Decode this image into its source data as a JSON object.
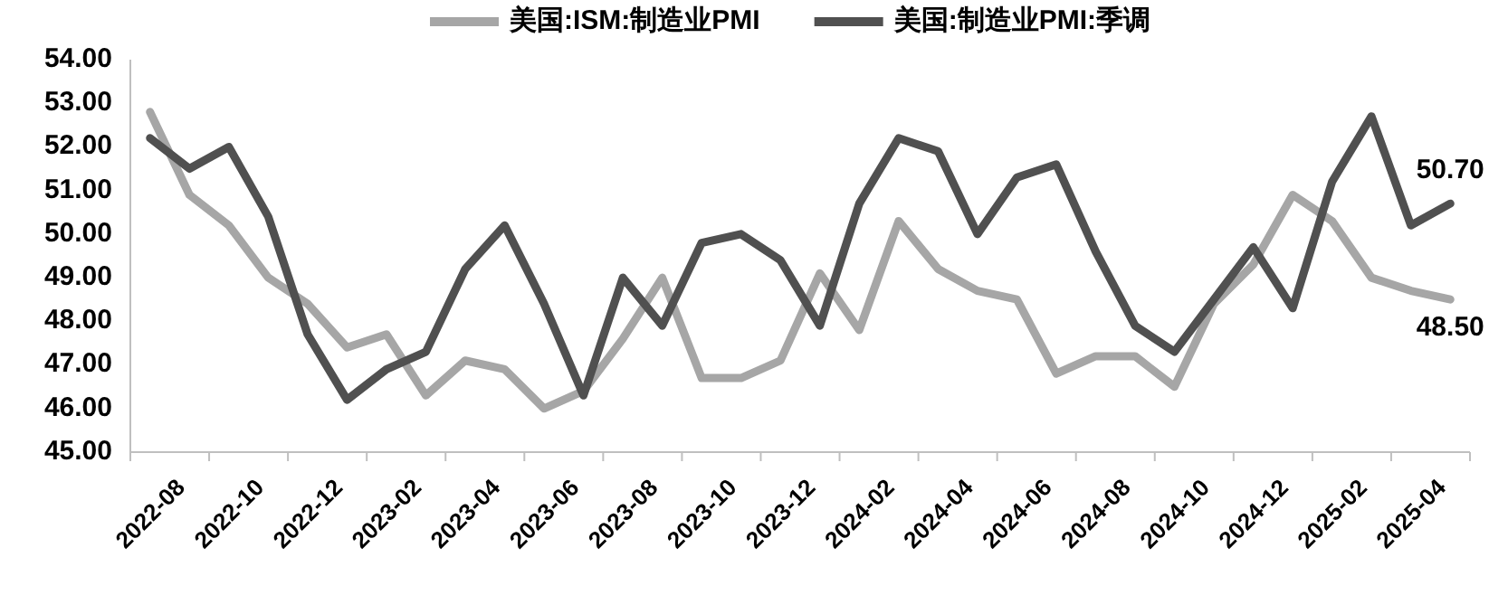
{
  "chart_data": {
    "type": "line",
    "categories": [
      "2022-08",
      null,
      "2022-10",
      null,
      "2022-12",
      null,
      "2023-02",
      null,
      "2023-04",
      null,
      "2023-06",
      null,
      "2023-08",
      null,
      "2023-10",
      null,
      "2023-12",
      null,
      "2024-02",
      null,
      "2024-04",
      null,
      "2024-06",
      null,
      "2024-08",
      null,
      "2024-10",
      null,
      "2024-12",
      null,
      "2025-02",
      null,
      "2025-04",
      null
    ],
    "series": [
      {
        "name": "美国:ISM:制造业PMI",
        "color": "#a6a6a6",
        "values": [
          52.8,
          50.9,
          50.2,
          49.0,
          48.4,
          47.4,
          47.7,
          46.3,
          47.1,
          46.9,
          46.0,
          46.4,
          47.6,
          49.0,
          46.7,
          46.7,
          47.1,
          49.1,
          47.8,
          50.3,
          49.2,
          48.7,
          48.5,
          46.8,
          47.2,
          47.2,
          46.5,
          48.4,
          49.3,
          50.9,
          50.3,
          49.0,
          48.7,
          48.5
        ],
        "value_labels": [
          null,
          null,
          null,
          null,
          null,
          null,
          null,
          null,
          null,
          null,
          null,
          null,
          null,
          null,
          null,
          null,
          null,
          null,
          null,
          null,
          null,
          null,
          null,
          null,
          null,
          null,
          null,
          null,
          null,
          null,
          null,
          null,
          null,
          "48.50"
        ]
      },
      {
        "name": "美国:制造业PMI:季调",
        "color": "#505050",
        "values": [
          52.2,
          51.5,
          52.0,
          50.4,
          47.7,
          46.2,
          46.9,
          47.3,
          49.2,
          50.2,
          48.4,
          46.3,
          49.0,
          47.9,
          49.8,
          50.0,
          49.4,
          47.9,
          50.7,
          52.2,
          51.9,
          50.0,
          51.3,
          51.6,
          49.6,
          47.9,
          47.3,
          48.5,
          49.7,
          48.3,
          51.2,
          52.7,
          50.2,
          50.7
        ],
        "value_labels": [
          null,
          null,
          null,
          null,
          null,
          null,
          null,
          null,
          null,
          null,
          null,
          null,
          null,
          null,
          null,
          null,
          null,
          null,
          null,
          null,
          null,
          null,
          null,
          null,
          null,
          null,
          null,
          null,
          null,
          null,
          null,
          null,
          null,
          "50.70"
        ]
      }
    ],
    "ylim": [
      45,
      54
    ],
    "yticks": [
      {
        "value": 45,
        "label": "45.00"
      },
      {
        "value": 46,
        "label": "46.00"
      },
      {
        "value": 47,
        "label": "47.00"
      },
      {
        "value": 48,
        "label": "48.00"
      },
      {
        "value": 49,
        "label": "49.00"
      },
      {
        "value": 50,
        "label": "50.00"
      },
      {
        "value": 51,
        "label": "51.00"
      },
      {
        "value": 52,
        "label": "52.00"
      },
      {
        "value": 53,
        "label": "53.00"
      },
      {
        "value": 54,
        "label": "54.00"
      }
    ],
    "legend": "top",
    "grid": false,
    "marker": "none",
    "line_style": "solid"
  }
}
